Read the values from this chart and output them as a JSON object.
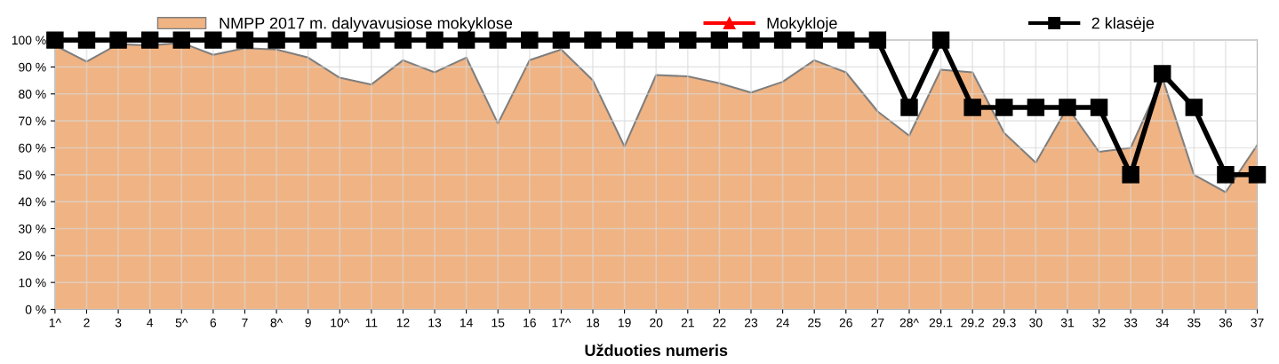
{
  "chart_data": {
    "type": "line",
    "xlabel": "Užduoties numeris",
    "categories": [
      "1^",
      "2",
      "3",
      "4",
      "5^",
      "6",
      "7",
      "8^",
      "9",
      "10^",
      "11",
      "12",
      "13",
      "14",
      "15",
      "16",
      "17^",
      "18",
      "19",
      "20",
      "21",
      "22",
      "23",
      "24",
      "25",
      "26",
      "27",
      "28^",
      "29.1",
      "29.2",
      "29.3",
      "30",
      "31",
      "32",
      "33",
      "34",
      "35",
      "36",
      "37"
    ],
    "series": [
      {
        "name": "NMPP 2017 m. dalyvavusiose mokyklose",
        "type": "area",
        "color": "#f0b383",
        "values": [
          98,
          92,
          98.5,
          98,
          99,
          94.5,
          97,
          96.5,
          93.5,
          86,
          83.5,
          92.5,
          88,
          93.5,
          69,
          92.5,
          96.5,
          85,
          60.5,
          87,
          86.5,
          84,
          80.5,
          84.5,
          92.5,
          88,
          73.5,
          64.5,
          89,
          88,
          65.5,
          54.5,
          75,
          58.5,
          60,
          86,
          50,
          43.5,
          61
        ]
      },
      {
        "name": "Mokykloje",
        "color": "#ff0000",
        "marker": "triangle",
        "values": [
          null,
          null,
          null,
          null,
          null,
          null,
          null,
          null,
          null,
          null,
          null,
          null,
          null,
          null,
          null,
          null,
          null,
          null,
          null,
          null,
          null,
          null,
          null,
          null,
          null,
          null,
          null,
          null,
          null,
          null,
          null,
          null,
          null,
          null,
          null,
          null,
          null,
          null,
          null
        ]
      },
      {
        "name": "2 klasėje",
        "color": "#000000",
        "marker": "square",
        "values": [
          100,
          100,
          100,
          100,
          100,
          100,
          100,
          100,
          100,
          100,
          100,
          100,
          100,
          100,
          100,
          100,
          100,
          100,
          100,
          100,
          100,
          100,
          100,
          100,
          100,
          100,
          100,
          75,
          100,
          75,
          75,
          75,
          75,
          75,
          50,
          87.5,
          75,
          50,
          50
        ]
      }
    ],
    "ylim": [
      0,
      100
    ],
    "yticks": [
      {
        "value": 0,
        "label": "0 %"
      },
      {
        "value": 10,
        "label": "10 %"
      },
      {
        "value": 20,
        "label": "20 %"
      },
      {
        "value": 30,
        "label": "30 %"
      },
      {
        "value": 40,
        "label": "40 %"
      },
      {
        "value": 50,
        "label": "50 %"
      },
      {
        "value": 60,
        "label": "60 %"
      },
      {
        "value": 70,
        "label": "70 %"
      },
      {
        "value": 80,
        "label": "80 %"
      },
      {
        "value": 90,
        "label": "90 %"
      },
      {
        "value": 100,
        "label": "100 %"
      }
    ],
    "grid": true,
    "legend": "top",
    "line_style": "solid"
  }
}
